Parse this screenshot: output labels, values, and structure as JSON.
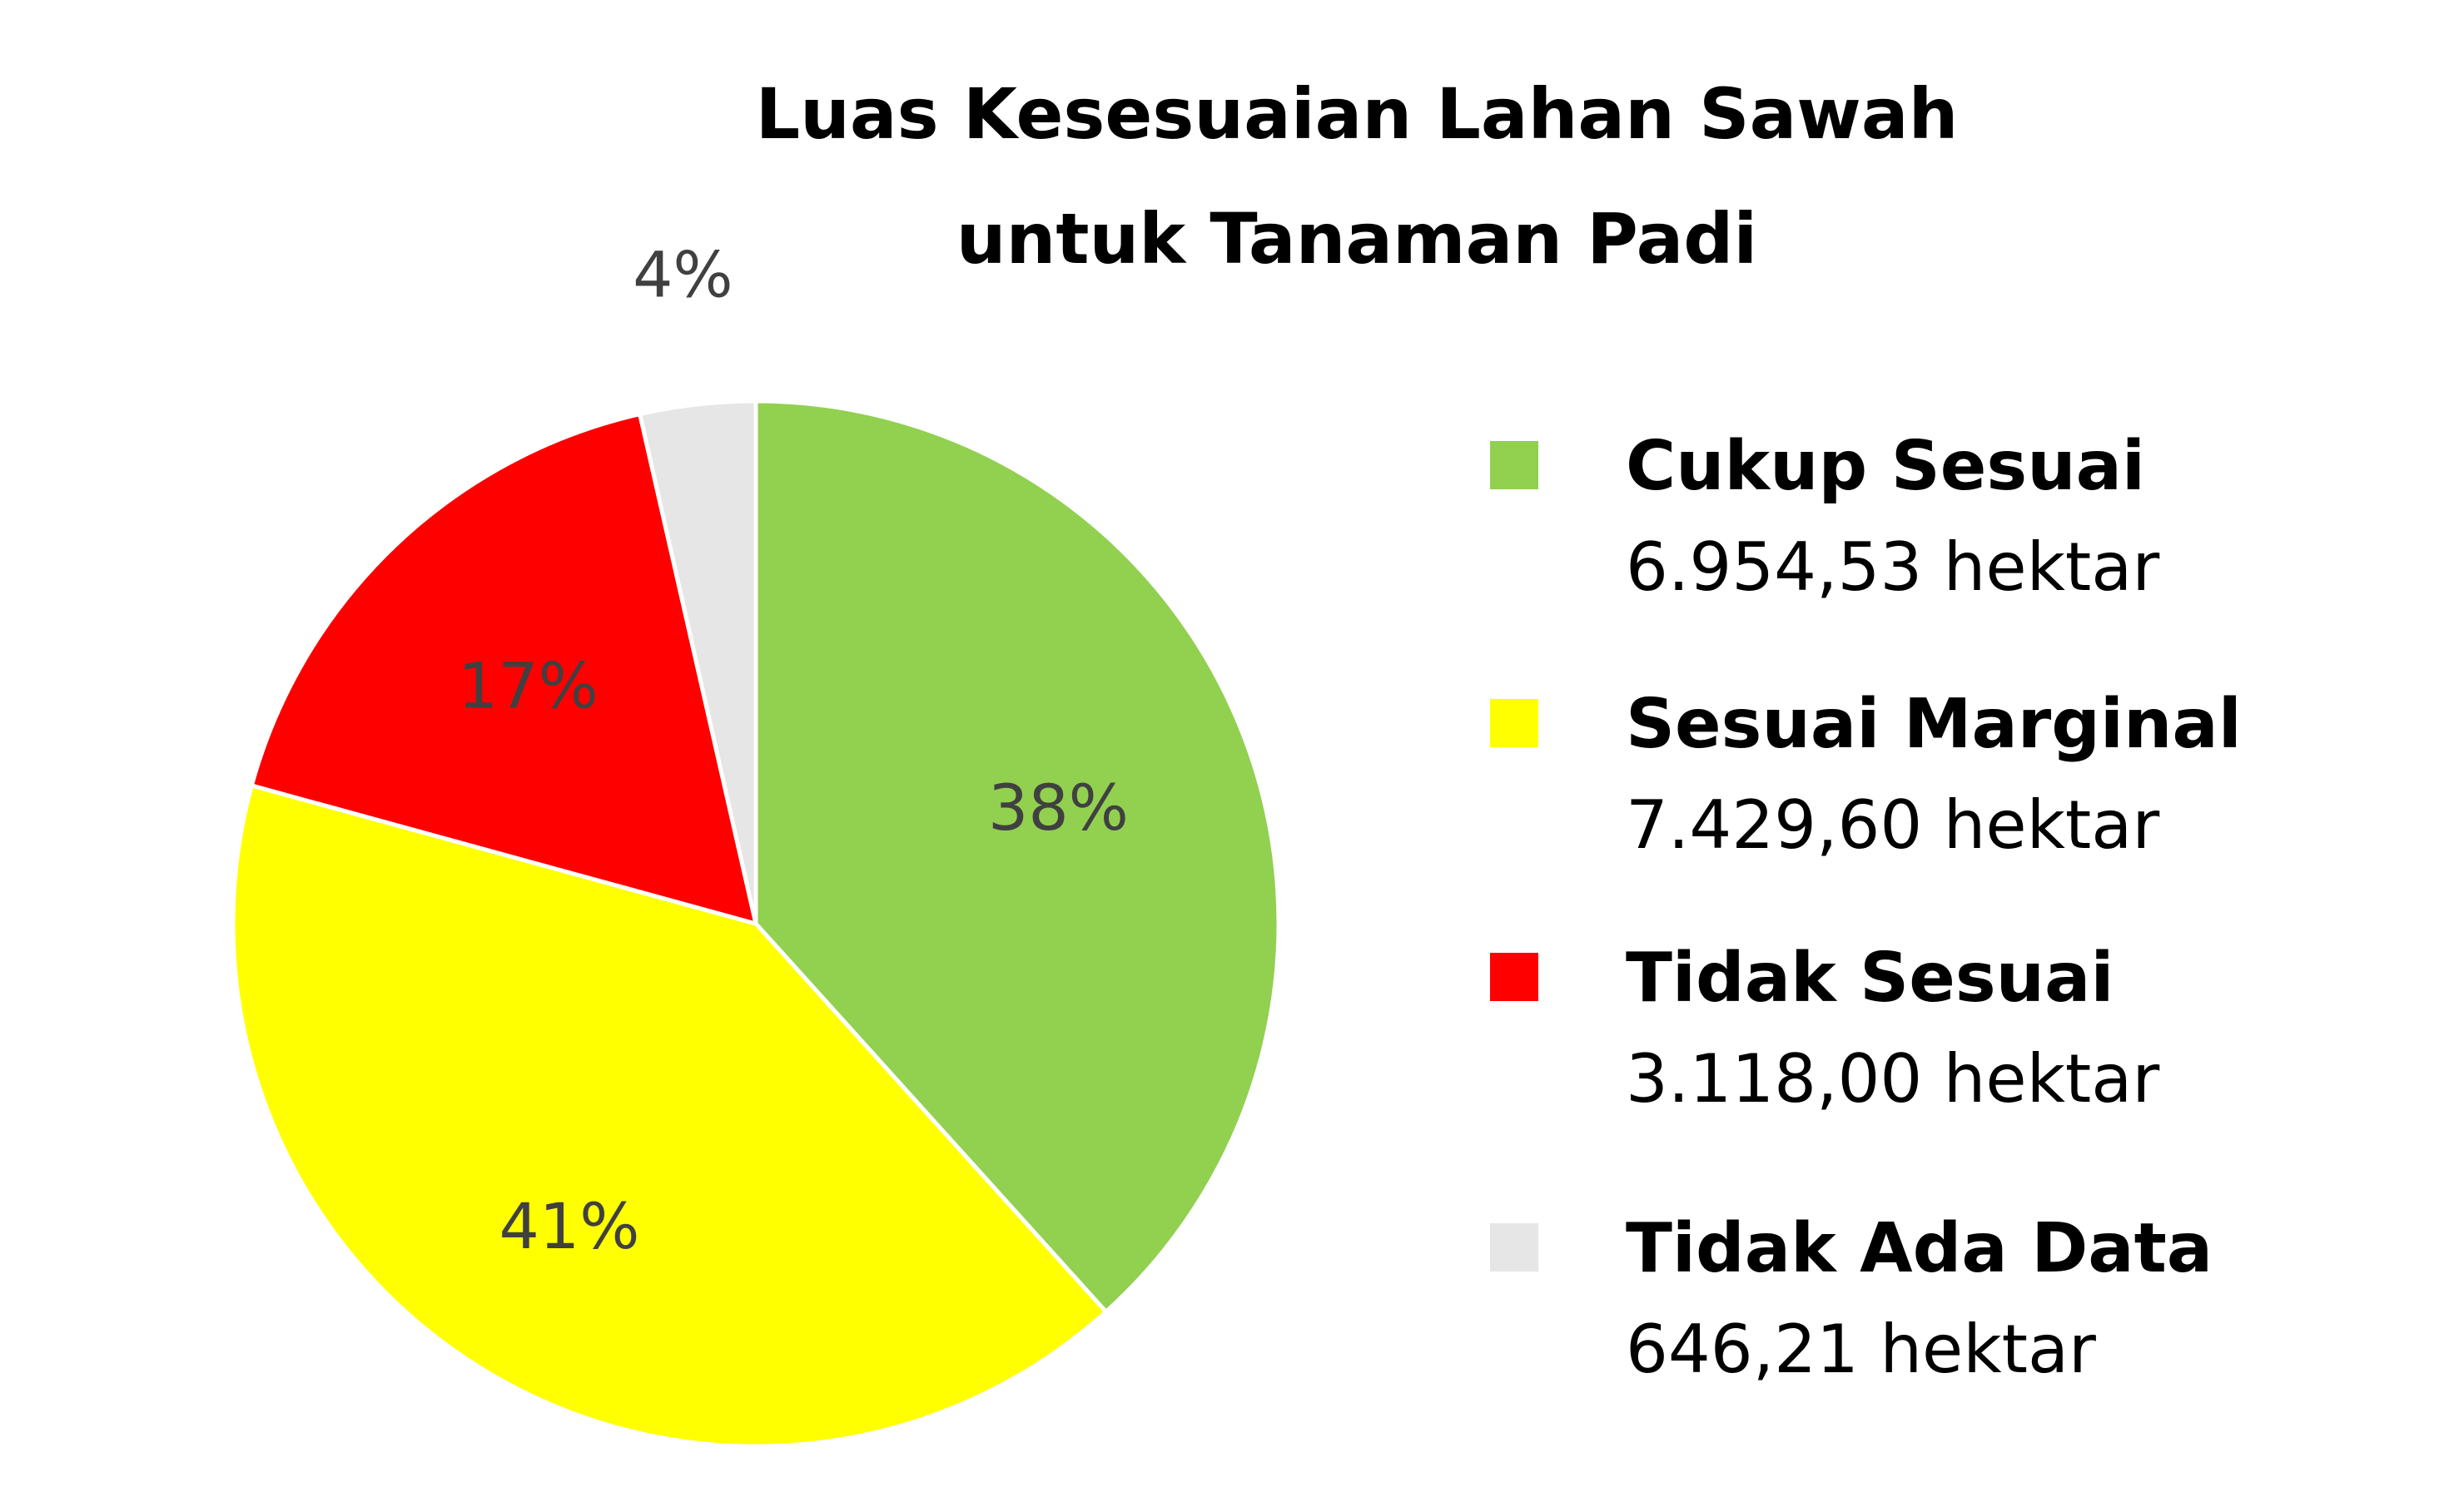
{
  "chart_data": {
    "type": "pie",
    "title_lines": [
      "Luas Kesesuaian Lahan Sawah",
      "untuk Tanaman Padi"
    ],
    "slices": [
      {
        "name": "Cukup Sesuai",
        "value": 6954.53,
        "value_label": "6.954,53 hektar",
        "percent_label": "38%",
        "color": "#92d050"
      },
      {
        "name": "Sesuai Marginal",
        "value": 7429.6,
        "value_label": "7.429,60 hektar",
        "percent_label": "41%",
        "color": "#ffff00"
      },
      {
        "name": "Tidak Sesuai",
        "value": 3118.0,
        "value_label": "3.118,00 hektar",
        "percent_label": "17%",
        "color": "#ff0000"
      },
      {
        "name": "Tidak Ada Data",
        "value": 646.21,
        "value_label": "646,21 hektar",
        "percent_label": "4%",
        "color": "#e6e6e6"
      }
    ],
    "start_angle": "12 o'clock",
    "direction": "clockwise",
    "legend_position": "right"
  }
}
